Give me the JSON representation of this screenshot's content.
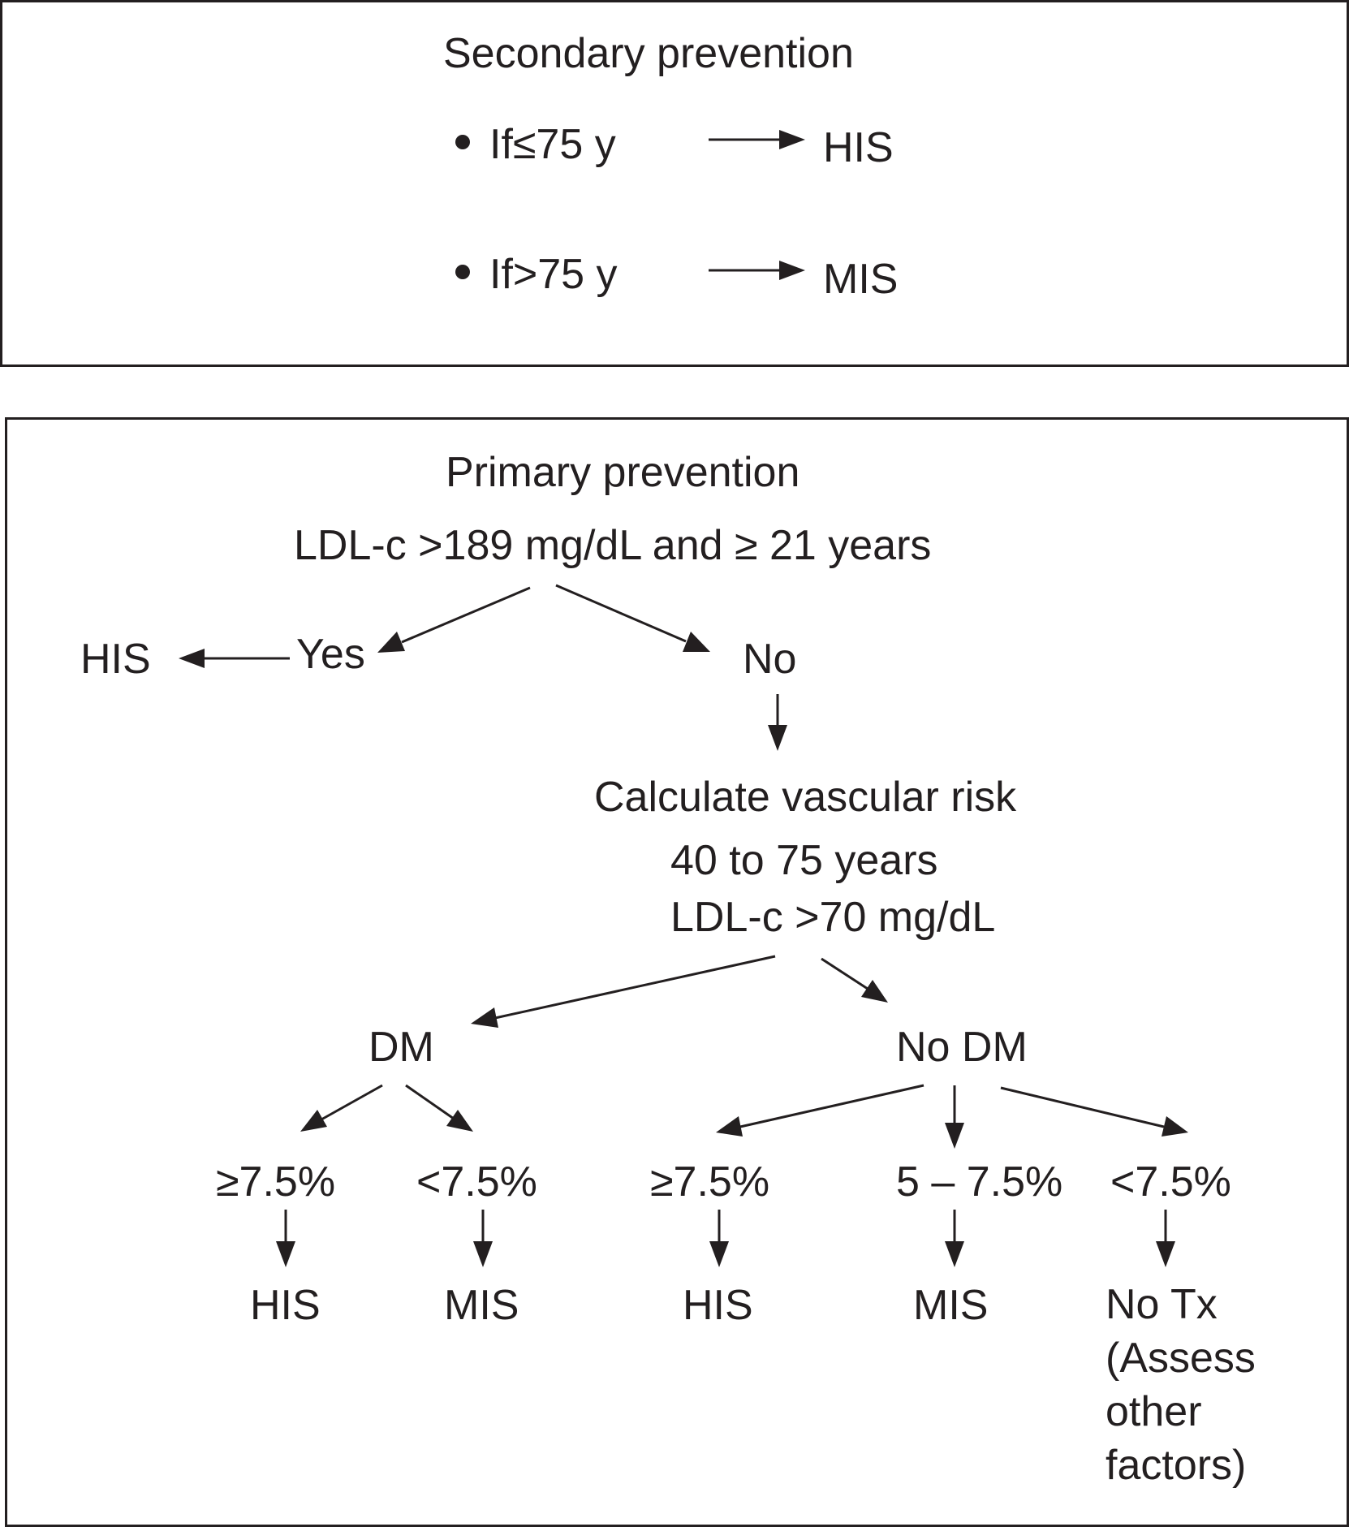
{
  "secondary": {
    "title": "Secondary prevention",
    "rows": [
      {
        "condition": "If≤75 y",
        "result": "HIS"
      },
      {
        "condition": "If>75 y",
        "result": "MIS"
      }
    ]
  },
  "primary": {
    "title": "Primary prevention",
    "criterion": "LDL-c >189 mg/dL and ≥ 21 years",
    "yes": "Yes",
    "yes_result": "HIS",
    "no": "No",
    "calc_line1": "Calculate vascular risk",
    "calc_line2": "40 to 75 years",
    "calc_line3": "LDL-c >70 mg/dL",
    "dm": {
      "label": "DM",
      "branches": [
        {
          "risk": "≥7.5%",
          "result": "HIS"
        },
        {
          "risk": "<7.5%",
          "result": "MIS"
        }
      ]
    },
    "nodm": {
      "label": "No DM",
      "branches": [
        {
          "risk": "≥7.5%",
          "result": "HIS"
        },
        {
          "risk": "5 – 7.5%",
          "result": "MIS"
        },
        {
          "risk": "<7.5%",
          "result": "No Tx\n(Assess\nother\nfactors)"
        }
      ]
    }
  }
}
